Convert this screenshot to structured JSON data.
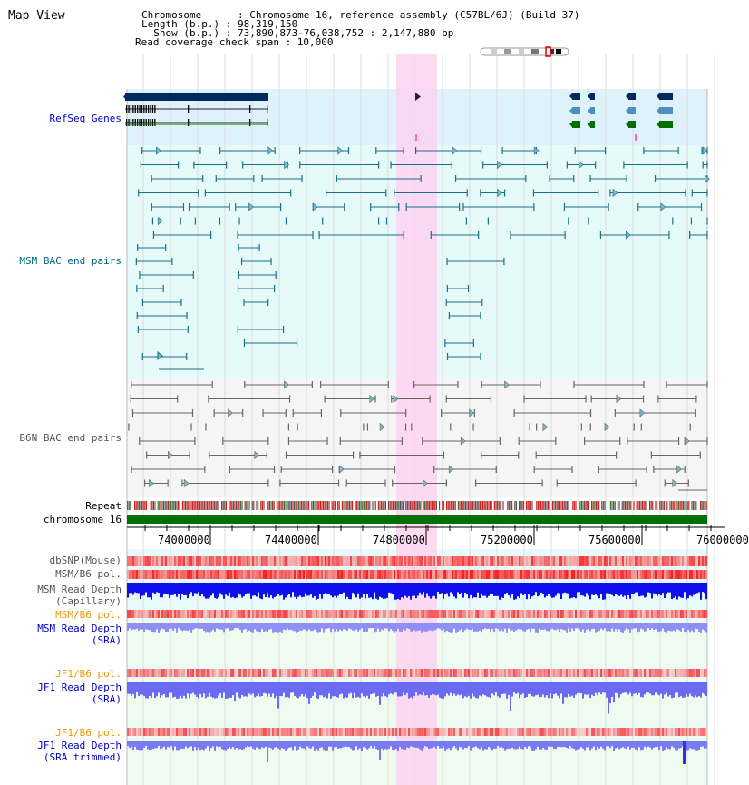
{
  "header": {
    "view_title": "Map View",
    "info_lines": [
      "Chromosome      : Chromosome 16, reference assembly (C57BL/6J) (Build 37)",
      "Length (b.p.) : 98,319,150",
      "  Show (b.p.) : 73,890,873-76,038,752 : 2,147,880 bp",
      "Read coverage check span : 10,000"
    ]
  },
  "tracks": {
    "refseq": {
      "label": "RefSeq Genes",
      "color": "#0000cc"
    },
    "msm_bac": {
      "label": "MSM BAC end pairs",
      "color": "#006680"
    },
    "b6n_bac": {
      "label": "B6N BAC end pairs",
      "color": "#555555"
    },
    "repeat": {
      "label": "Repeat",
      "color": "#000000"
    },
    "chromosome": {
      "label": "chromosome 16",
      "color": "#000000"
    },
    "dbsnp": {
      "label": "dbSNP(Mouse)",
      "color": "#555555"
    },
    "msm_b6_pol": {
      "label": "MSM/B6 pol.",
      "color": "#555555"
    },
    "msm_depth_cap": {
      "label": "MSM Read Depth\n(Capillary)",
      "color": "#555555"
    },
    "msm_b6_pol_sra": {
      "label": "MSM/B6 pol.",
      "color": "#ee9900"
    },
    "msm_depth_sra": {
      "label": "MSM Read Depth\n(SRA)",
      "color": "#0000cc"
    },
    "jf1_b6_pol": {
      "label": "JF1/B6 pol.",
      "color": "#ee9900"
    },
    "jf1_depth_sra": {
      "label": "JF1 Read Depth\n(SRA)",
      "color": "#0000cc"
    },
    "jf1_b6_pol_2": {
      "label": "JF1/B6 pol.",
      "color": "#ee9900"
    },
    "jf1_depth_trim": {
      "label": "JF1 Read Depth\n(SRA trimmed)",
      "color": "#0000cc"
    }
  },
  "axis": {
    "ticks": [
      "74000000",
      "74400000",
      "74800000",
      "75200000",
      "75600000",
      "76000000"
    ]
  },
  "colors": {
    "refseq_bg": "#dff2fb",
    "msm_bac_bg": "#e6fafa",
    "b6n_bac_bg": "#f5f5f5",
    "highlight": "#fbd3f0",
    "chromosome_bar": "#007000",
    "gene_dark": "#002a5c",
    "gene_green": "#007000",
    "bac_teal": "#1a6e8a",
    "bac_gray": "#666666",
    "snp_red": "#f04040",
    "depth_blue": "#1010ee",
    "depth_light": "#8f8ff5"
  },
  "icons": {
    "chromosome_ideogram": "chromosome-ideogram-icon"
  }
}
